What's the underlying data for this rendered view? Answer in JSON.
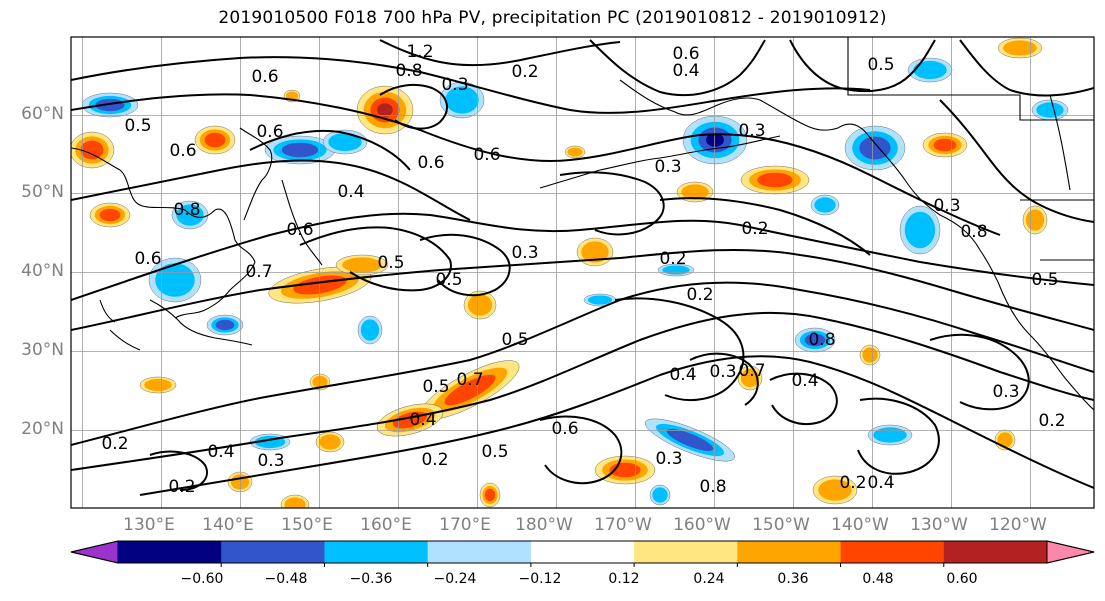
{
  "title": "2019010500 F018 700 hPa PV, precipitation PC (2019010812 - 2019010912)",
  "map": {
    "latitude_labels": [
      "60°N",
      "50°N",
      "40°N",
      "30°N",
      "20°N"
    ],
    "longitude_labels": [
      "130°E",
      "140°E",
      "150°E",
      "160°E",
      "170°E",
      "180°W",
      "170°W",
      "160°W",
      "150°W",
      "140°W",
      "130°W",
      "120°W"
    ],
    "pv_contour_labels": [
      "1.2",
      "0.8",
      "0.6",
      "0.6",
      "0.5",
      "0.6",
      "0.3",
      "0.6",
      "0.6",
      "0.6",
      "0.4",
      "0.8",
      "0.3",
      "0.3",
      "0.2",
      "0.5",
      "0.2",
      "0.3",
      "0.4",
      "0.5",
      "0.7",
      "0.6",
      "0.4",
      "0.2",
      "0.3",
      "0.5",
      "0.5",
      "0.8",
      "0.7",
      "0.2",
      "0.3",
      "0.4",
      "0.5",
      "0.6",
      "0.8",
      "0.4",
      "0.5",
      "0.2",
      "0.3",
      "0.4",
      "0.2",
      "0.8",
      "0.3",
      "0.2",
      "0.2",
      "0.4",
      "0.2",
      "0.7",
      "0.6",
      "0.5",
      "0.3"
    ],
    "grid": true,
    "coastlines": true
  },
  "colorbar": {
    "ticks": [
      "−0.60",
      "−0.48",
      "−0.36",
      "−0.24",
      "−0.12",
      "0.12",
      "0.24",
      "0.36",
      "0.48",
      "0.60"
    ],
    "colors": [
      "#9b33cc",
      "#000080",
      "#3355cc",
      "#00bfff",
      "#b0e2ff",
      "#ffffff",
      "#ffe680",
      "#ffa500",
      "#ff4500",
      "#b22222",
      "#ff88aa"
    ],
    "extend": "both"
  },
  "precip_pc_colors": {
    "neg_strong": "#000080",
    "neg_mid": "#3355cc",
    "neg_weak": "#00bfff",
    "neg_faint": "#b0e2ff",
    "pos_faint": "#ffe680",
    "pos_weak": "#ffa500",
    "pos_mid": "#ff4500",
    "pos_strong": "#b22222"
  }
}
